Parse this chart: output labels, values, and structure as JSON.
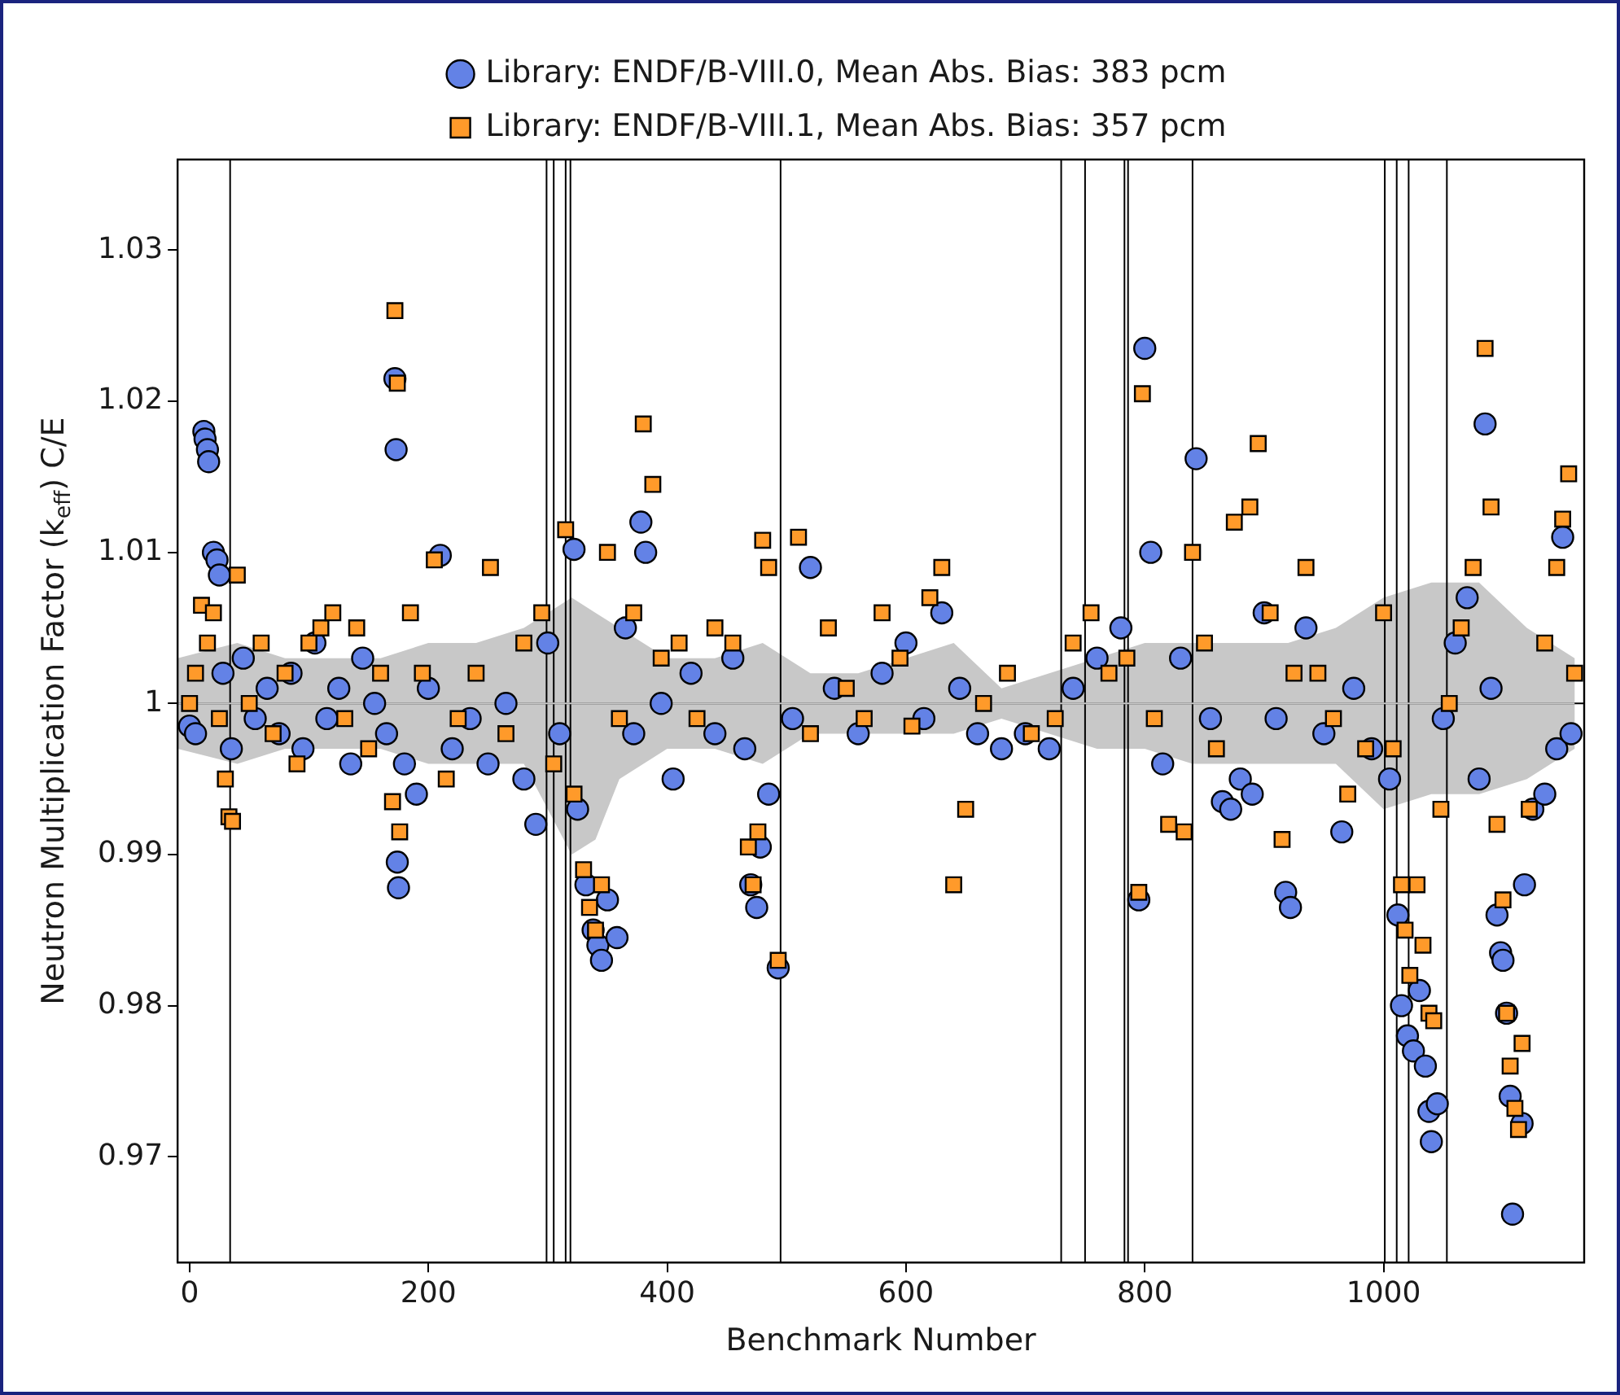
{
  "chart_data": {
    "type": "scatter",
    "xlabel": "Benchmark Number",
    "ylabel": "Neutron Multiplication Factor (k$_{eff}$) C/E",
    "xlim": [
      -10,
      1168
    ],
    "ylim": [
      0.963,
      1.036
    ],
    "xticks": [
      0,
      200,
      400,
      600,
      800,
      1000
    ],
    "yticks": [
      0.97,
      0.98,
      0.99,
      1.0,
      1.01,
      1.02,
      1.03
    ],
    "grid": false,
    "legend": "top",
    "ref_lines": [
      {
        "axis": "y",
        "value": 1.0,
        "color": "#000000"
      },
      {
        "axis": "x",
        "value": 34,
        "color": "#000000"
      },
      {
        "axis": "x",
        "value": 299,
        "color": "#000000"
      },
      {
        "axis": "x",
        "value": 305,
        "color": "#000000"
      },
      {
        "axis": "x",
        "value": 315,
        "color": "#000000"
      },
      {
        "axis": "x",
        "value": 319,
        "color": "#000000"
      },
      {
        "axis": "x",
        "value": 495,
        "color": "#000000"
      },
      {
        "axis": "x",
        "value": 730,
        "color": "#000000"
      },
      {
        "axis": "x",
        "value": 750,
        "color": "#000000"
      },
      {
        "axis": "x",
        "value": 783,
        "color": "#000000"
      },
      {
        "axis": "x",
        "value": 786,
        "color": "#000000"
      },
      {
        "axis": "x",
        "value": 840,
        "color": "#000000"
      },
      {
        "axis": "x",
        "value": 1001,
        "color": "#000000"
      },
      {
        "axis": "x",
        "value": 1011,
        "color": "#000000"
      },
      {
        "axis": "x",
        "value": 1021,
        "color": "#000000"
      },
      {
        "axis": "x",
        "value": 1053,
        "color": "#000000"
      }
    ],
    "series": [
      {
        "type": "line",
        "color": "#c8c8c8",
        "x": [
          -10,
          40,
          80,
          120,
          160,
          200,
          240,
          280,
          300,
          320,
          340,
          360,
          400,
          440,
          480,
          520,
          560,
          600,
          640,
          680,
          720,
          760,
          800,
          840,
          880,
          920,
          960,
          1000,
          1040,
          1080,
          1120,
          1160
        ],
        "values": [
          1.0,
          1.0,
          1.0,
          1.0,
          1.0,
          1.0,
          1.0,
          1.0,
          1.0,
          1.0,
          1.0,
          1.0,
          1.0,
          1.0,
          1.0,
          1.0,
          1.0,
          1.0,
          1.0,
          1.0,
          1.0,
          1.0,
          1.0,
          1.0,
          1.0,
          1.0,
          1.0,
          1.0,
          1.0,
          1.0,
          1.0,
          1.0
        ],
        "lower": [
          0.997,
          0.996,
          0.997,
          0.997,
          0.997,
          0.996,
          0.996,
          0.996,
          0.993,
          0.99,
          0.991,
          0.995,
          0.997,
          0.997,
          0.996,
          0.998,
          0.998,
          0.998,
          0.998,
          0.999,
          0.998,
          0.997,
          0.997,
          0.996,
          0.996,
          0.996,
          0.996,
          0.993,
          0.994,
          0.994,
          0.995,
          0.997
        ],
        "upper": [
          1.003,
          1.004,
          1.003,
          1.003,
          1.003,
          1.004,
          1.004,
          1.005,
          1.006,
          1.007,
          1.006,
          1.005,
          1.003,
          1.003,
          1.004,
          1.002,
          1.002,
          1.003,
          1.004,
          1.001,
          1.002,
          1.003,
          1.004,
          1.004,
          1.004,
          1.004,
          1.005,
          1.007,
          1.008,
          1.008,
          1.005,
          1.003
        ]
      },
      {
        "name": "Library: ENDF/B-VIII.0, Mean Abs. Bias: 383 pcm",
        "color": "#6382e6",
        "marker": "circle",
        "x": [
          0,
          5,
          12,
          13,
          15,
          16,
          20,
          23,
          25,
          28,
          35,
          45,
          55,
          65,
          75,
          85,
          95,
          105,
          115,
          125,
          135,
          145,
          155,
          165,
          172,
          173,
          174,
          175,
          180,
          190,
          200,
          210,
          220,
          235,
          250,
          265,
          280,
          290,
          300,
          310,
          322,
          325,
          332,
          338,
          342,
          345,
          350,
          358,
          365,
          372,
          378,
          382,
          395,
          405,
          420,
          440,
          455,
          465,
          470,
          475,
          478,
          485,
          493,
          505,
          520,
          540,
          560,
          580,
          600,
          615,
          630,
          645,
          660,
          680,
          700,
          720,
          740,
          760,
          780,
          795,
          800,
          805,
          815,
          830,
          843,
          855,
          865,
          872,
          880,
          890,
          900,
          910,
          918,
          922,
          935,
          950,
          965,
          975,
          990,
          1005,
          1012,
          1015,
          1020,
          1025,
          1030,
          1035,
          1038,
          1040,
          1045,
          1050,
          1060,
          1070,
          1080,
          1085,
          1090,
          1095,
          1098,
          1100,
          1103,
          1106,
          1108,
          1116,
          1118,
          1125,
          1135,
          1145,
          1150,
          1157
        ],
        "values": [
          0.9985,
          0.998,
          1.018,
          1.0175,
          1.0168,
          1.016,
          1.01,
          1.0095,
          1.0085,
          1.002,
          0.997,
          1.003,
          0.999,
          1.001,
          0.998,
          1.002,
          0.997,
          1.004,
          0.999,
          1.001,
          0.996,
          1.003,
          1.0,
          0.998,
          1.0215,
          1.0168,
          0.9895,
          0.9878,
          0.996,
          0.994,
          1.001,
          1.0098,
          0.997,
          0.999,
          0.996,
          1.0,
          0.995,
          0.992,
          1.004,
          0.998,
          1.0102,
          0.993,
          0.988,
          0.985,
          0.984,
          0.983,
          0.987,
          0.9845,
          1.005,
          0.998,
          1.012,
          1.01,
          1.0,
          0.995,
          1.002,
          0.998,
          1.003,
          0.997,
          0.988,
          0.9865,
          0.9905,
          0.994,
          0.9825,
          0.999,
          1.009,
          1.001,
          0.998,
          1.002,
          1.004,
          0.999,
          1.006,
          1.001,
          0.998,
          0.997,
          0.998,
          0.997,
          1.001,
          1.003,
          1.005,
          0.987,
          1.0235,
          1.01,
          0.996,
          1.003,
          1.0162,
          0.999,
          0.9935,
          0.993,
          0.995,
          0.994,
          1.006,
          0.999,
          0.9875,
          0.9865,
          1.005,
          0.998,
          0.9915,
          1.001,
          0.997,
          0.995,
          0.986,
          0.98,
          0.978,
          0.977,
          0.981,
          0.976,
          0.973,
          0.971,
          0.9735,
          0.999,
          1.004,
          1.007,
          0.995,
          1.0185,
          1.001,
          0.986,
          0.9835,
          0.983,
          0.9795,
          0.974,
          0.9662,
          0.9722,
          0.988,
          0.993,
          0.994,
          0.997,
          1.011,
          0.998
        ]
      },
      {
        "name": "Library: ENDF/B-VIII.1, Mean Abs. Bias: 357 pcm",
        "color": "#ff9a2a",
        "marker": "square",
        "x": [
          0,
          5,
          10,
          15,
          20,
          25,
          30,
          33,
          36,
          40,
          50,
          60,
          70,
          80,
          90,
          100,
          110,
          120,
          130,
          140,
          150,
          160,
          170,
          172,
          174,
          176,
          185,
          195,
          205,
          215,
          225,
          240,
          252,
          265,
          280,
          295,
          305,
          315,
          322,
          330,
          335,
          340,
          345,
          350,
          360,
          372,
          380,
          388,
          395,
          410,
          425,
          440,
          455,
          468,
          472,
          476,
          480,
          485,
          493,
          510,
          520,
          535,
          550,
          565,
          580,
          595,
          605,
          620,
          630,
          640,
          650,
          665,
          685,
          705,
          725,
          740,
          755,
          770,
          785,
          795,
          798,
          808,
          820,
          833,
          840,
          850,
          860,
          875,
          888,
          895,
          905,
          915,
          925,
          935,
          945,
          958,
          970,
          985,
          1000,
          1008,
          1015,
          1018,
          1022,
          1028,
          1033,
          1038,
          1042,
          1048,
          1055,
          1065,
          1075,
          1085,
          1090,
          1095,
          1100,
          1103,
          1106,
          1110,
          1113,
          1116,
          1122,
          1135,
          1145,
          1150,
          1155,
          1160
        ],
        "values": [
          1.0,
          1.002,
          1.0065,
          1.004,
          1.006,
          0.999,
          0.995,
          0.9925,
          0.9922,
          1.0085,
          1.0,
          1.004,
          0.998,
          1.002,
          0.996,
          1.004,
          1.005,
          1.006,
          0.999,
          1.005,
          0.997,
          1.002,
          0.9935,
          1.026,
          1.0212,
          0.9915,
          1.006,
          1.002,
          1.0095,
          0.995,
          0.999,
          1.002,
          1.009,
          0.998,
          1.004,
          1.006,
          0.996,
          1.0115,
          0.994,
          0.989,
          0.9865,
          0.985,
          0.988,
          1.01,
          0.999,
          1.006,
          1.0185,
          1.0145,
          1.003,
          1.004,
          0.999,
          1.005,
          1.004,
          0.9905,
          0.988,
          0.9915,
          1.0108,
          1.009,
          0.983,
          1.011,
          0.998,
          1.005,
          1.001,
          0.999,
          1.006,
          1.003,
          0.9985,
          1.007,
          1.009,
          0.988,
          0.993,
          1.0,
          1.002,
          0.998,
          0.999,
          1.004,
          1.006,
          1.002,
          1.003,
          0.9875,
          1.0205,
          0.999,
          0.992,
          0.9915,
          1.01,
          1.004,
          0.997,
          1.012,
          1.013,
          1.0172,
          1.006,
          0.991,
          1.002,
          1.009,
          1.002,
          0.999,
          0.994,
          0.997,
          1.006,
          0.997,
          0.988,
          0.985,
          0.982,
          0.988,
          0.984,
          0.9795,
          0.979,
          0.993,
          1.0,
          1.005,
          1.009,
          1.0235,
          1.013,
          0.992,
          0.987,
          0.9795,
          0.976,
          0.9732,
          0.9718,
          0.9775,
          0.993,
          1.004,
          1.009,
          1.0122,
          1.0152,
          1.002
        ]
      }
    ]
  }
}
